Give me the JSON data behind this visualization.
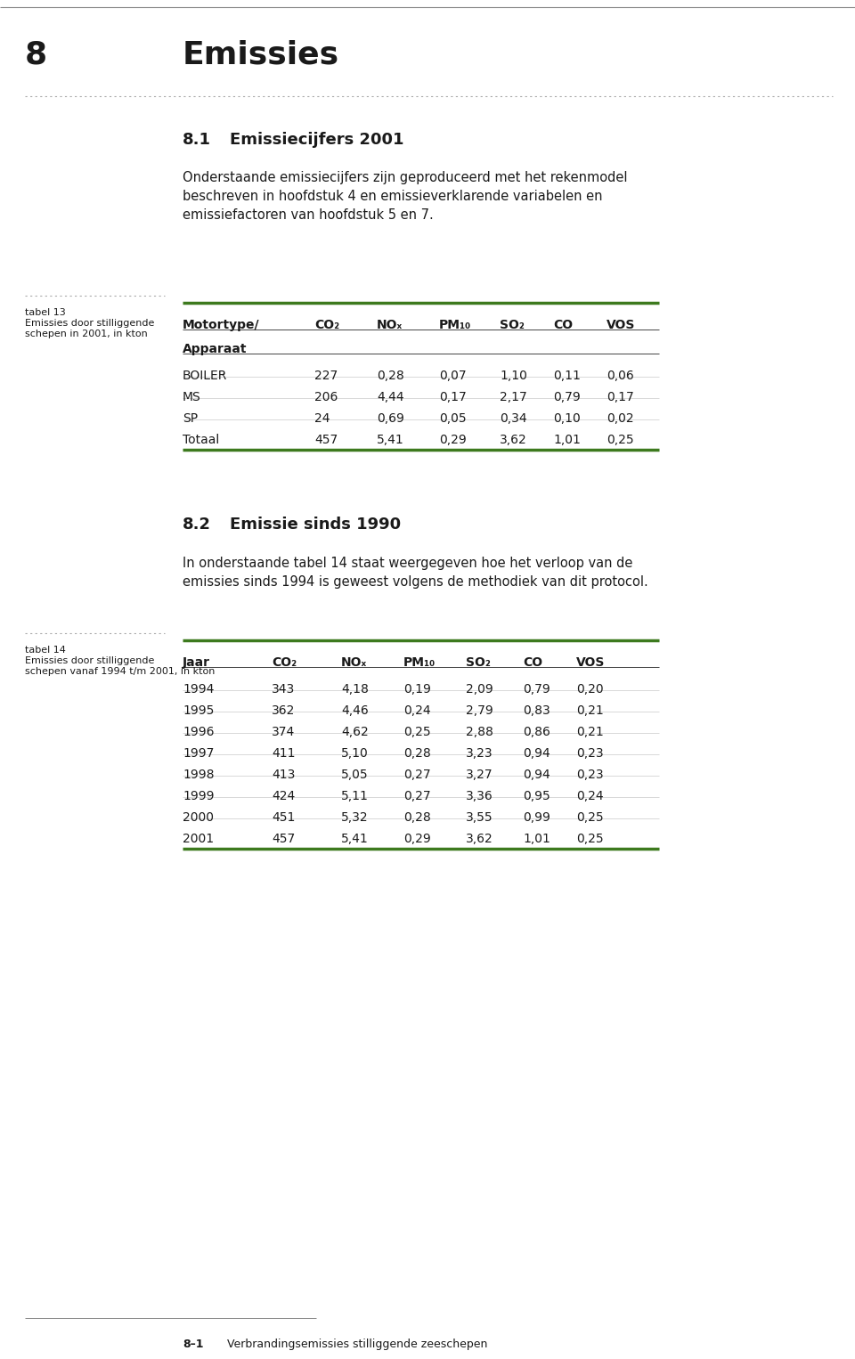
{
  "page_number": "8",
  "chapter_title": "Emissies",
  "section1_number": "8.1",
  "section1_title": "Emissiecijfers 2001",
  "section1_text": "Onderstaande emissiecijfers zijn geproduceerd met het rekenmodel\nbeschreven in hoofdstuk 4 en emissieverklarende variabelen en\nemissiefactoren van hoofdstuk 5 en 7.",
  "table1_caption_num": "tabel 13",
  "table1_caption_line1": "Emissies door stilliggende",
  "table1_caption_line2": "schepen in 2001, in kton",
  "table1_subheader": "Apparaat",
  "table1_rows": [
    [
      "BOILER",
      "227",
      "0,28",
      "0,07",
      "1,10",
      "0,11",
      "0,06"
    ],
    [
      "MS",
      "206",
      "4,44",
      "0,17",
      "2,17",
      "0,79",
      "0,17"
    ],
    [
      "SP",
      "24",
      "0,69",
      "0,05",
      "0,34",
      "0,10",
      "0,02"
    ],
    [
      "Totaal",
      "457",
      "5,41",
      "0,29",
      "3,62",
      "1,01",
      "0,25"
    ]
  ],
  "section2_number": "8.2",
  "section2_title": "Emissie sinds 1990",
  "section2_text": "In onderstaande tabel 14 staat weergegeven hoe het verloop van de\nemissies sinds 1994 is geweest volgens de methodiek van dit protocol.",
  "table2_caption_num": "tabel 14",
  "table2_caption_line1": "Emissies door stilliggende",
  "table2_caption_line2": "schepen vanaf 1994 t/m 2001, in kton",
  "table2_rows": [
    [
      "1994",
      "343",
      "4,18",
      "0,19",
      "2,09",
      "0,79",
      "0,20"
    ],
    [
      "1995",
      "362",
      "4,46",
      "0,24",
      "2,79",
      "0,83",
      "0,21"
    ],
    [
      "1996",
      "374",
      "4,62",
      "0,25",
      "2,88",
      "0,86",
      "0,21"
    ],
    [
      "1997",
      "411",
      "5,10",
      "0,28",
      "3,23",
      "0,94",
      "0,23"
    ],
    [
      "1998",
      "413",
      "5,05",
      "0,27",
      "3,27",
      "0,94",
      "0,23"
    ],
    [
      "1999",
      "424",
      "5,11",
      "0,27",
      "3,36",
      "0,95",
      "0,24"
    ],
    [
      "2000",
      "451",
      "5,32",
      "0,28",
      "3,55",
      "0,99",
      "0,25"
    ],
    [
      "2001",
      "457",
      "5,41",
      "0,29",
      "3,62",
      "1,01",
      "0,25"
    ]
  ],
  "footer_page": "8–1",
  "footer_text": "Verbrandingsemissies stilliggende zeeschepen",
  "green_color": "#3d7a1e",
  "text_color": "#1a1a1a",
  "background_color": "#ffffff",
  "dotted_line_color": "#aaaaaa",
  "top_line_color": "#888888",
  "table1_header_cols": [
    "Motortype/",
    "CO₂",
    "NOₓ",
    "PM₁₀",
    "SO₂",
    "CO",
    "VOS"
  ],
  "table2_header_cols": [
    "Jaar",
    "CO₂",
    "NOₓ",
    "PM₁₀",
    "SO₂",
    "CO",
    "VOS"
  ]
}
